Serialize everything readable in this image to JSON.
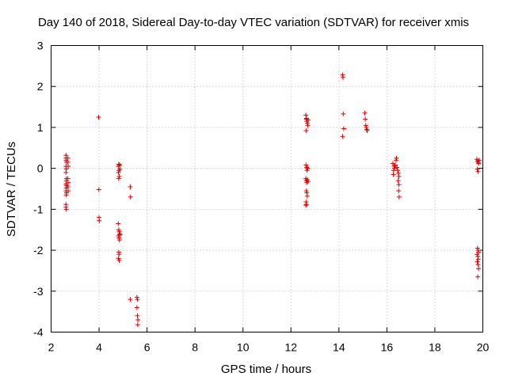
{
  "chart_data": {
    "type": "scatter",
    "title": "Day 140 of 2018, Sidereal Day-to-day VTEC variation (SDTVAR) for receiver xmis",
    "xlabel": "GPS time / hours",
    "ylabel": "SDTVAR / TECUs",
    "xlim": [
      2,
      20
    ],
    "ylim": [
      -4,
      3
    ],
    "x_ticks": [
      2,
      4,
      6,
      8,
      10,
      12,
      14,
      16,
      18,
      20
    ],
    "y_ticks": [
      -4,
      -3,
      -2,
      -1,
      0,
      1,
      2,
      3
    ],
    "grid": true,
    "marker": "+",
    "series": [
      {
        "name": "SDTVAR",
        "color": "#e00000",
        "points": [
          [
            2.62,
            0.32
          ],
          [
            2.62,
            0.25
          ],
          [
            2.63,
            0.2
          ],
          [
            2.64,
            0.15
          ],
          [
            2.62,
            0.05
          ],
          [
            2.63,
            -0.02
          ],
          [
            2.62,
            -0.1
          ],
          [
            2.64,
            -0.25
          ],
          [
            2.63,
            -0.3
          ],
          [
            2.62,
            -0.38
          ],
          [
            2.64,
            -0.42
          ],
          [
            2.63,
            -0.48
          ],
          [
            2.62,
            -0.55
          ],
          [
            2.64,
            -0.6
          ],
          [
            2.63,
            -0.65
          ],
          [
            2.62,
            -0.88
          ],
          [
            2.62,
            -0.95
          ],
          [
            2.63,
            -1.0
          ],
          [
            2.7,
            0.25
          ],
          [
            2.7,
            0.15
          ],
          [
            2.71,
            0.05
          ],
          [
            2.7,
            -0.25
          ],
          [
            2.71,
            -0.35
          ],
          [
            2.7,
            -0.45
          ],
          [
            2.71,
            -0.55
          ],
          [
            3.98,
            1.25
          ],
          [
            3.99,
            -0.52
          ],
          [
            4.0,
            -1.2
          ],
          [
            4.01,
            -1.28
          ],
          [
            4.82,
            0.1
          ],
          [
            4.8,
            0.05
          ],
          [
            4.83,
            -0.05
          ],
          [
            4.81,
            -0.1
          ],
          [
            4.84,
            -0.2
          ],
          [
            4.82,
            -0.25
          ],
          [
            4.86,
            0.08
          ],
          [
            4.87,
            -0.02
          ],
          [
            4.8,
            -1.35
          ],
          [
            4.82,
            -1.5
          ],
          [
            4.84,
            -1.55
          ],
          [
            4.86,
            -1.6
          ],
          [
            4.81,
            -1.65
          ],
          [
            4.83,
            -1.7
          ],
          [
            4.85,
            -1.75
          ],
          [
            4.87,
            -1.62
          ],
          [
            4.82,
            -2.05
          ],
          [
            4.83,
            -2.1
          ],
          [
            4.81,
            -2.2
          ],
          [
            4.84,
            -2.25
          ],
          [
            5.3,
            -0.45
          ],
          [
            5.31,
            -0.7
          ],
          [
            5.3,
            -3.2
          ],
          [
            5.58,
            -3.15
          ],
          [
            5.6,
            -3.2
          ],
          [
            5.58,
            -3.4
          ],
          [
            5.6,
            -3.6
          ],
          [
            5.62,
            -3.7
          ],
          [
            5.61,
            -3.82
          ],
          [
            12.62,
            1.3
          ],
          [
            12.64,
            1.2
          ],
          [
            12.66,
            1.15
          ],
          [
            12.68,
            1.1
          ],
          [
            12.7,
            1.05
          ],
          [
            12.63,
            0.92
          ],
          [
            12.65,
            1.22
          ],
          [
            12.72,
            1.18
          ],
          [
            12.63,
            0.08
          ],
          [
            12.65,
            0.02
          ],
          [
            12.67,
            -0.05
          ],
          [
            12.7,
            0.0
          ],
          [
            12.62,
            -0.25
          ],
          [
            12.64,
            -0.3
          ],
          [
            12.66,
            -0.35
          ],
          [
            12.68,
            -0.28
          ],
          [
            12.71,
            -0.32
          ],
          [
            12.64,
            -0.55
          ],
          [
            12.66,
            -0.6
          ],
          [
            12.68,
            -0.68
          ],
          [
            12.63,
            -0.82
          ],
          [
            12.65,
            -0.88
          ],
          [
            12.62,
            -0.9
          ],
          [
            14.15,
            2.28
          ],
          [
            14.17,
            2.22
          ],
          [
            14.18,
            1.33
          ],
          [
            14.2,
            0.97
          ],
          [
            14.15,
            0.78
          ],
          [
            15.08,
            1.35
          ],
          [
            15.1,
            1.2
          ],
          [
            15.12,
            1.05
          ],
          [
            15.14,
            1.0
          ],
          [
            15.16,
            0.95
          ],
          [
            15.18,
            0.92
          ],
          [
            16.25,
            0.12
          ],
          [
            16.3,
            0.05
          ],
          [
            16.32,
            0.0
          ],
          [
            16.28,
            -0.05
          ],
          [
            16.35,
            0.08
          ],
          [
            16.38,
            0.2
          ],
          [
            16.4,
            0.25
          ],
          [
            16.27,
            -0.15
          ],
          [
            16.42,
            0.02
          ],
          [
            16.45,
            -0.05
          ],
          [
            16.48,
            -0.12
          ],
          [
            16.5,
            -0.2
          ],
          [
            16.47,
            -0.3
          ],
          [
            16.5,
            -0.4
          ],
          [
            16.49,
            -0.55
          ],
          [
            16.51,
            -0.7
          ],
          [
            19.75,
            0.22
          ],
          [
            19.78,
            0.18
          ],
          [
            19.8,
            0.15
          ],
          [
            19.82,
            0.12
          ],
          [
            19.85,
            0.2
          ],
          [
            19.77,
            -0.02
          ],
          [
            19.8,
            -0.08
          ],
          [
            19.78,
            -1.95
          ],
          [
            19.8,
            -2.0
          ],
          [
            19.82,
            -2.05
          ],
          [
            19.76,
            -2.1
          ],
          [
            19.79,
            -2.15
          ],
          [
            19.81,
            -2.22
          ],
          [
            19.77,
            -2.28
          ],
          [
            19.8,
            -2.35
          ],
          [
            19.82,
            -2.45
          ],
          [
            19.79,
            -2.65
          ]
        ]
      }
    ]
  }
}
